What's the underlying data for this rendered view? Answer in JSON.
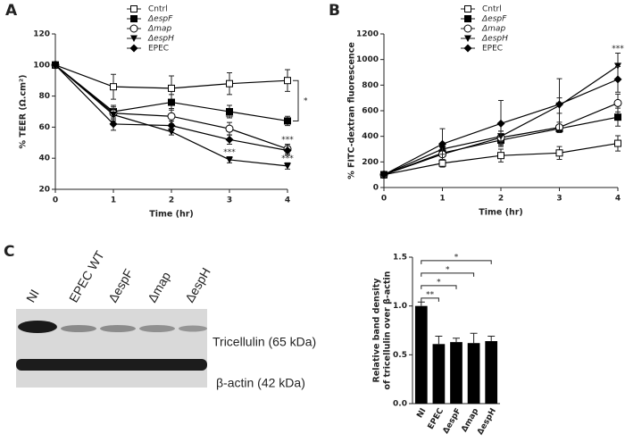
{
  "panel_labels": [
    "A",
    "B",
    "C"
  ],
  "blot": {
    "lanes": [
      "NI",
      "EPEC WT",
      "ΔespF",
      "Δmap",
      "ΔespH"
    ],
    "bands": [
      "Tricellulin (65 kDa)",
      "β-actin (42 kDa)"
    ]
  },
  "chart_data": [
    {
      "type": "line",
      "xlabel": "Time (hr)",
      "ylabel": "% TEER (Ω.cm²)",
      "x": [
        0,
        1,
        2,
        3,
        4
      ],
      "xlim": [
        0,
        4
      ],
      "xticks": [
        0,
        1,
        2,
        3,
        4
      ],
      "ylim": [
        20,
        120
      ],
      "yticks": [
        20,
        40,
        60,
        80,
        100,
        120
      ],
      "series": [
        {
          "name": "Cntrl",
          "color": "#000000",
          "marker": "square-open",
          "values": [
            100,
            86,
            85,
            88,
            90
          ],
          "errors": [
            0,
            8,
            8,
            7,
            7
          ]
        },
        {
          "name": "ΔespF",
          "color": "#000000",
          "marker": "square",
          "values": [
            100,
            70,
            76,
            70,
            64
          ],
          "errors": [
            0,
            4,
            5,
            4,
            3
          ]
        },
        {
          "name": "Δmap",
          "color": "#000000",
          "marker": "circle-open",
          "values": [
            100,
            69,
            67,
            59,
            46
          ],
          "errors": [
            0,
            4,
            5,
            4,
            3
          ]
        },
        {
          "name": "ΔespH",
          "color": "#000000",
          "marker": "triangle-down",
          "values": [
            100,
            68,
            57,
            39,
            35
          ],
          "errors": [
            0,
            4,
            2,
            2,
            2
          ]
        },
        {
          "name": "EPEC",
          "color": "#000000",
          "marker": "diamond",
          "values": [
            100,
            62,
            61,
            52,
            45
          ],
          "errors": [
            0,
            4,
            3,
            3,
            3
          ]
        }
      ],
      "annotations": [
        {
          "text": "*",
          "x": 2,
          "series": "ΔespH"
        },
        {
          "text": "**",
          "x": 3,
          "series": "Δmap"
        },
        {
          "text": "***",
          "x": 3,
          "series": "ΔespH"
        },
        {
          "text": "***",
          "x": 4,
          "series": "Δmap"
        },
        {
          "text": "***",
          "x": 4,
          "series": "ΔespH"
        },
        {
          "text": "*",
          "x": 4,
          "between": [
            "Cntrl",
            "ΔespF"
          ]
        }
      ]
    },
    {
      "type": "line",
      "xlabel": "Time (hr)",
      "ylabel": "% FITC-dextran fluorescence",
      "x": [
        0,
        1,
        2,
        3,
        4
      ],
      "xlim": [
        0,
        4
      ],
      "xticks": [
        0,
        1,
        2,
        3,
        4
      ],
      "ylim": [
        0,
        1200
      ],
      "yticks": [
        0,
        200,
        400,
        600,
        800,
        1000,
        1200
      ],
      "series": [
        {
          "name": "Cntrl",
          "color": "#000000",
          "marker": "square-open",
          "values": [
            100,
            190,
            250,
            270,
            345
          ],
          "errors": [
            0,
            30,
            50,
            50,
            60
          ]
        },
        {
          "name": "ΔespF",
          "color": "#000000",
          "marker": "square",
          "values": [
            100,
            270,
            370,
            460,
            550
          ],
          "errors": [
            0,
            30,
            40,
            30,
            70
          ]
        },
        {
          "name": "Δmap",
          "color": "#000000",
          "marker": "circle-open",
          "values": [
            100,
            260,
            390,
            470,
            660
          ],
          "errors": [
            0,
            40,
            50,
            40,
            70
          ]
        },
        {
          "name": "ΔespH",
          "color": "#000000",
          "marker": "triangle-down",
          "values": [
            100,
            300,
            400,
            640,
            950
          ],
          "errors": [
            0,
            40,
            40,
            60,
            100
          ]
        },
        {
          "name": "EPEC",
          "color": "#000000",
          "marker": "diamond",
          "values": [
            100,
            340,
            500,
            650,
            845
          ],
          "errors": [
            0,
            120,
            180,
            200,
            100
          ]
        }
      ],
      "annotations": [
        {
          "text": "***",
          "x": 4,
          "series": "ΔespH"
        }
      ]
    },
    {
      "type": "bar",
      "ylabel": [
        "Relative band density",
        "of tricellulin over β-actin"
      ],
      "categories": [
        "NI",
        "EPEC",
        "ΔespF",
        "Δmap",
        "ΔespH"
      ],
      "values": [
        1.0,
        0.61,
        0.63,
        0.62,
        0.64
      ],
      "errors": [
        0.04,
        0.08,
        0.04,
        0.1,
        0.05
      ],
      "color": "#000000",
      "ylim": [
        0,
        1.5
      ],
      "yticks": [
        {
          "value": 0,
          "label": "0.0"
        },
        {
          "value": 0.5,
          "label": "0.5"
        },
        {
          "value": 1,
          "label": "1.0"
        },
        {
          "value": 1.5,
          "label": "1.5"
        }
      ],
      "significance": [
        {
          "between": [
            "NI",
            "EPEC"
          ],
          "text": "**"
        },
        {
          "between": [
            "NI",
            "ΔespF"
          ],
          "text": "*"
        },
        {
          "between": [
            "NI",
            "Δmap"
          ],
          "text": "*"
        },
        {
          "between": [
            "NI",
            "ΔespH"
          ],
          "text": "*"
        }
      ]
    }
  ]
}
